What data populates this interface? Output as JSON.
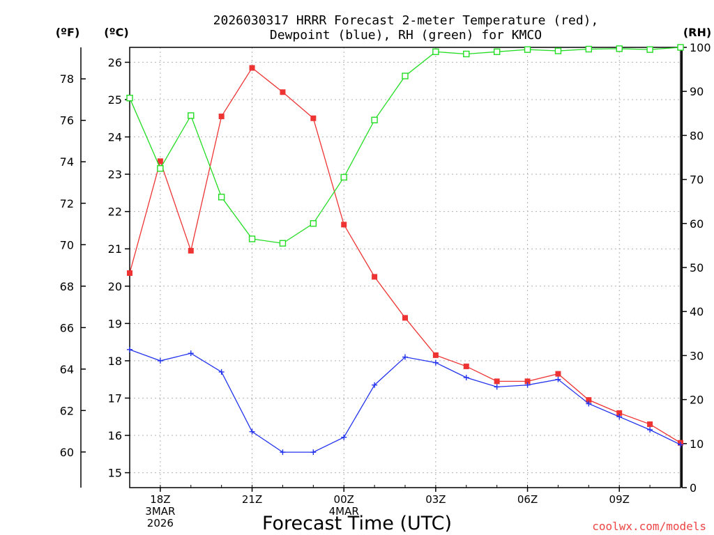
{
  "chart_data": {
    "type": "line",
    "title_line1": "2026030317 HRRR Forecast 2-meter Temperature (red),",
    "title_line2": "Dewpoint (blue), RH (green) for KMCO",
    "xlabel": "Forecast Time (UTC)",
    "credit": "coolwx.com/models",
    "units": {
      "fahrenheit": "(ºF)",
      "celsius": "(ºC)",
      "rh": "(RH)"
    },
    "x_hours": [
      0,
      1,
      2,
      3,
      4,
      5,
      6,
      7,
      8,
      9,
      10,
      11,
      12,
      13,
      14,
      15,
      16,
      17,
      18
    ],
    "xlim": [
      0,
      18
    ],
    "x_ticks": [
      {
        "hour": 1,
        "lines": [
          "18Z",
          "3MAR",
          "2026"
        ]
      },
      {
        "hour": 4,
        "lines": [
          "21Z"
        ]
      },
      {
        "hour": 7,
        "lines": [
          "00Z",
          "4MAR"
        ]
      },
      {
        "hour": 10,
        "lines": [
          "03Z"
        ]
      },
      {
        "hour": 13,
        "lines": [
          "06Z"
        ]
      },
      {
        "hour": 16,
        "lines": [
          "09Z"
        ]
      }
    ],
    "celsius_axis": {
      "lim": [
        14.6,
        26.4
      ],
      "ticks": [
        "15",
        "16",
        "17",
        "18",
        "19",
        "20",
        "21",
        "22",
        "23",
        "24",
        "25",
        "26"
      ]
    },
    "fahrenheit_axis": {
      "ticks": [
        "60",
        "62",
        "64",
        "66",
        "68",
        "70",
        "72",
        "74",
        "76",
        "78"
      ]
    },
    "rh_axis": {
      "lim": [
        0,
        100
      ],
      "ticks": [
        "0",
        "10",
        "20",
        "30",
        "40",
        "50",
        "60",
        "70",
        "80",
        "90",
        "100"
      ]
    },
    "series": [
      {
        "name": "Temperature",
        "axis": "celsius",
        "color": "#ee3333",
        "marker": "filled-square",
        "values": [
          20.35,
          23.35,
          20.95,
          24.55,
          25.85,
          25.2,
          24.5,
          21.65,
          20.25,
          19.15,
          18.15,
          17.85,
          17.45,
          17.45,
          17.65,
          16.95,
          16.6,
          16.3,
          15.8
        ]
      },
      {
        "name": "Dewpoint",
        "axis": "celsius",
        "color": "#2233ee",
        "marker": "plus",
        "values": [
          18.3,
          18.0,
          18.2,
          17.7,
          16.1,
          15.55,
          15.55,
          15.95,
          17.35,
          18.1,
          17.95,
          17.55,
          17.3,
          17.35,
          17.5,
          16.85,
          16.5,
          16.15,
          15.75
        ]
      },
      {
        "name": "RH",
        "axis": "rh",
        "color": "#22dd22",
        "marker": "open-square",
        "values": [
          88.5,
          72.5,
          84.5,
          66,
          56.5,
          55.5,
          60,
          70.5,
          83.5,
          93.5,
          99,
          98.5,
          99,
          99.5,
          99.2,
          99.6,
          99.7,
          99.5,
          100
        ]
      }
    ]
  }
}
